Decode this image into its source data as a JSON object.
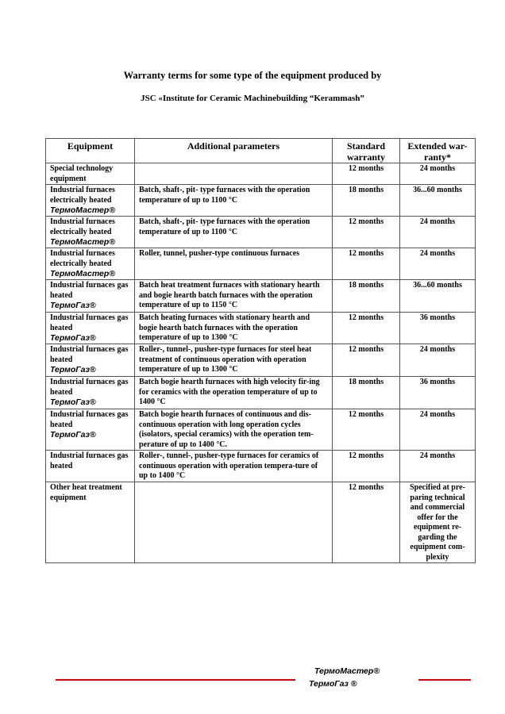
{
  "title_line1": "Warranty terms for some type of the equipment produced by",
  "title_line2": "JSC «Institute for Ceramic Machinebuilding “Kerammash”",
  "table": {
    "headers": [
      "Equipment",
      "Additional parameters",
      "Standard warranty",
      "Extended war-ranty*"
    ],
    "rows": [
      {
        "equipment": "Special technology equipment",
        "brand": "",
        "params": "",
        "standard": "12 months",
        "extended": "24 months"
      },
      {
        "equipment": "Industrial furnaces electrically heated",
        "brand": "ТермоМастер®",
        "params": "Batch, shaft-, pit- type furnaces with the operation temperature of up to 1100 °C",
        "standard": "18 months",
        "extended": "36...60 months"
      },
      {
        "equipment": "Industrial furnaces electrically heated",
        "brand": "ТермоМастер®",
        "params": "Batch, shaft-, pit- type furnaces with the operation temperature of up to 1100 °C",
        "standard": "12 months",
        "extended": "24 months"
      },
      {
        "equipment": "Industrial furnaces electrically heated",
        "brand": "ТермоМастер®",
        "params": "Roller, tunnel, pusher-type continuous furnaces",
        "standard": "12 months",
        "extended": "24 months"
      },
      {
        "equipment": "Industrial furnaces gas heated",
        "brand": "ТермоГаз®",
        "params": "Batch heat treatment furnaces with stationary hearth and bogie hearth batch furnaces with the operation temperature of up to 1150 °C",
        "standard": "18 months",
        "extended": "36...60 months"
      },
      {
        "equipment": "Industrial furnaces gas heated",
        "brand": "ТермоГаз®",
        "params": "Batch heating furnaces with stationary hearth and bogie hearth batch furnaces with the operation temperature of up to 1300 °C",
        "standard": "12 months",
        "extended": "36 months"
      },
      {
        "equipment": "Industrial furnaces gas heated",
        "brand": "ТермоГаз®",
        "params": "Roller-, tunnel-, pusher-type furnaces for steel heat treatment of continuous operation with operation temperature of up to 1300 °C",
        "standard": "12 months",
        "extended": "24 months"
      },
      {
        "equipment": "Industrial furnaces gas heated",
        "brand": "ТермоГаз®",
        "params": "Batch bogie hearth furnaces with high velocity fir-ing for ceramics with the operation temperature of up to 1400 °C",
        "standard": "18 months",
        "extended": "36 months"
      },
      {
        "equipment": "Industrial furnaces gas heated",
        "brand": "ТермоГаз®",
        "params": "Batch bogie hearth furnaces of continuous and dis-continuous operation with long operation cycles (isolators, special ceramics) with the operation tem-perature of up to 1400 °C.",
        "standard": "12 months",
        "extended": "24 months"
      },
      {
        "equipment": "Industrial furnaces gas heated",
        "brand": "",
        "params": "Roller-, tunnel-, pusher-type furnaces for ceramics of continuous operation with operation tempera-ture of up to 1400 °C",
        "standard": "12 months",
        "extended": "24 months"
      },
      {
        "equipment": "Other heat treatment equipment",
        "brand": "",
        "params": "",
        "standard": "12 months",
        "extended": "Specified at pre-paring technical and commercial offer for the equipment re-garding the equipment com-plexity"
      }
    ]
  },
  "footer": {
    "brand1": "ТермоМастер®",
    "brand2": "ТермоГаз ®",
    "line_color": "#e00000"
  }
}
